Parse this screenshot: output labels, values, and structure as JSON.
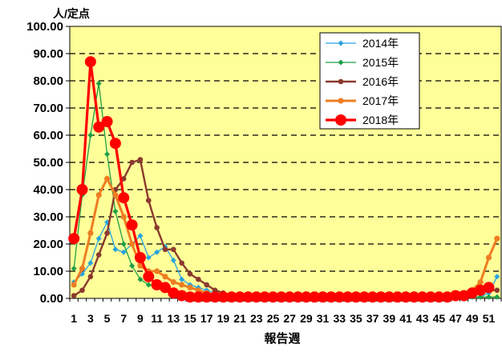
{
  "chart_data": {
    "type": "line",
    "ylabel": "人/定点",
    "xlabel": "報告週",
    "ylim": [
      0,
      100
    ],
    "yticks": [
      "0.00",
      "10.00",
      "20.00",
      "30.00",
      "40.00",
      "50.00",
      "60.00",
      "70.00",
      "80.00",
      "90.00",
      "100.00"
    ],
    "xticks": [
      "1",
      "3",
      "5",
      "7",
      "9",
      "11",
      "13",
      "15",
      "17",
      "19",
      "21",
      "23",
      "25",
      "27",
      "29",
      "31",
      "33",
      "35",
      "37",
      "39",
      "41",
      "43",
      "45",
      "47",
      "49",
      "51"
    ],
    "grid": true,
    "legend_position": "top-right",
    "plot_background": "#ffff99",
    "series": [
      {
        "name": "2014年",
        "color": "#29a3e0",
        "marker": "diamond",
        "values": [
          6,
          9,
          13,
          22,
          28,
          18,
          17,
          20,
          23,
          15,
          17,
          19,
          14,
          7,
          5,
          4,
          3,
          2,
          1,
          1,
          0.5,
          0.5,
          0.5,
          0.5,
          0.5,
          0.5,
          0.5,
          0.5,
          0.5,
          0.5,
          0.5,
          0.5,
          0.5,
          0.5,
          0.5,
          0.5,
          0.5,
          0.5,
          0.5,
          0.5,
          0.5,
          0.5,
          0.5,
          0.5,
          0.5,
          0.5,
          0.5,
          0.5,
          0.5,
          0.5,
          2,
          8
        ]
      },
      {
        "name": "2015年",
        "color": "#1e9e48",
        "marker": "diamond",
        "values": [
          11,
          38,
          60,
          79,
          53,
          32,
          20,
          12,
          7,
          5,
          4,
          3,
          2,
          1,
          1,
          0.5,
          0.5,
          0.5,
          0.5,
          0.5,
          0.5,
          0.5,
          0.5,
          0.5,
          0.5,
          0.5,
          0.5,
          0.5,
          0.5,
          0.5,
          0.5,
          0.5,
          0.5,
          0.5,
          0.5,
          0.5,
          0.5,
          0.5,
          0.5,
          0.5,
          0.5,
          0.5,
          0.5,
          0.5,
          0.5,
          0.5,
          0.5,
          0.5,
          0.5,
          0.5,
          0.5,
          0.5
        ]
      },
      {
        "name": "2016年",
        "color": "#8b3a2e",
        "marker": "circle",
        "values": [
          1,
          3,
          8,
          16,
          24,
          40,
          44,
          50,
          51,
          36,
          26,
          18,
          18,
          13,
          9,
          7,
          5,
          3,
          2,
          1,
          1,
          0.5,
          0.5,
          0.5,
          0.5,
          0.5,
          0.5,
          0.5,
          0.5,
          0.5,
          0.5,
          0.5,
          0.5,
          0.5,
          0.5,
          0.5,
          0.5,
          0.5,
          0.5,
          0.5,
          0.5,
          0.5,
          0.5,
          0.5,
          0.5,
          0.5,
          1,
          1,
          2,
          2,
          3,
          3
        ]
      },
      {
        "name": "2017年",
        "color": "#ee7d22",
        "marker": "circle",
        "values": [
          5,
          11,
          24,
          38,
          44,
          38,
          30,
          20,
          12,
          10,
          10,
          8,
          6,
          5,
          4,
          3,
          2,
          1,
          1,
          1,
          0.5,
          0.5,
          0.5,
          0.5,
          0.5,
          0.5,
          0.5,
          0.5,
          0.5,
          0.5,
          0.5,
          0.5,
          0.5,
          0.5,
          0.5,
          0.5,
          0.5,
          0.5,
          0.5,
          0.5,
          0.5,
          0.5,
          0.5,
          0.5,
          0.5,
          0.5,
          1,
          2,
          3,
          6,
          15,
          22
        ]
      },
      {
        "name": "2018年",
        "color": "#ff0000",
        "marker": "circle",
        "values": [
          22,
          40,
          87,
          63,
          65,
          57,
          37,
          27,
          15,
          8,
          5,
          4,
          2,
          1,
          0.5,
          0.5,
          0.5,
          0.5,
          0.5,
          0.5,
          0.5,
          0.5,
          0.5,
          0.5,
          0.5,
          0.5,
          0.5,
          0.5,
          0.5,
          0.5,
          0.5,
          0.5,
          0.5,
          0.5,
          0.5,
          0.5,
          0.5,
          0.5,
          0.5,
          0.5,
          0.5,
          0.5,
          0.5,
          0.5,
          0.5,
          0.5,
          1,
          1,
          2,
          3,
          4
        ]
      }
    ]
  }
}
